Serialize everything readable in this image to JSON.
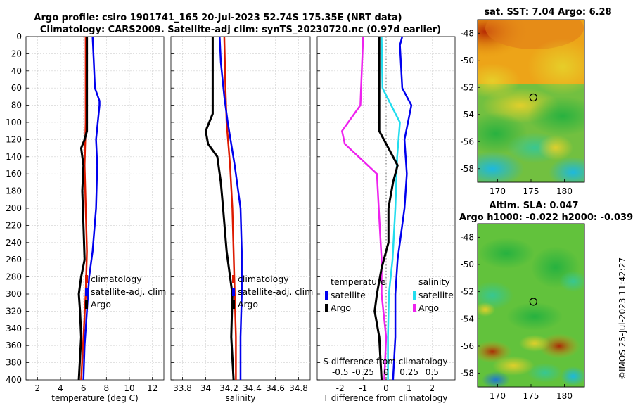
{
  "title_line1": "Argo profile: csiro 1901741_165 20-Jul-2023 52.74S 175.35E (NRT data)",
  "title_line2": "Climatology: CARS2009. Satellite-adj clim: synTS_20230720.nc (0.97d earlier)",
  "watermark": "©IMOS 25-Jul-2023 11:42:27",
  "colors": {
    "argo": "#000000",
    "climatology": "#dd1a00",
    "satellite_adj": "#0000ee",
    "sal_sat": "#22ddee",
    "sal_diff": "#ee22ee"
  },
  "chart_data": [
    {
      "id": "temperature",
      "type": "line",
      "xlabel": "temperature (deg C)",
      "xlim": [
        1,
        13
      ],
      "xticks": [
        2,
        4,
        6,
        8,
        10,
        12
      ],
      "ylim": [
        0,
        400
      ],
      "yticks": [
        0,
        20,
        40,
        60,
        80,
        100,
        120,
        140,
        160,
        180,
        200,
        220,
        240,
        260,
        280,
        300,
        320,
        340,
        360,
        380,
        400
      ],
      "legend": [
        "climatology",
        "satellite-adj. clim",
        "Argo"
      ],
      "series": [
        {
          "name": "climatology",
          "depth": [
            0,
            50,
            100,
            150,
            200,
            250,
            300,
            350,
            400
          ],
          "values": [
            6.2,
            6.2,
            6.2,
            6.1,
            6.2,
            6.3,
            6.2,
            6.0,
            5.8
          ]
        },
        {
          "name": "satellite-adj. clim",
          "depth": [
            0,
            30,
            60,
            75,
            80,
            120,
            150,
            200,
            250,
            280,
            320,
            360,
            400
          ],
          "values": [
            6.8,
            6.9,
            7.0,
            7.4,
            7.4,
            7.1,
            7.2,
            7.1,
            6.8,
            6.5,
            6.3,
            6.1,
            6.0
          ]
        },
        {
          "name": "Argo",
          "depth": [
            0,
            60,
            110,
            120,
            130,
            150,
            180,
            220,
            260,
            280,
            300,
            320,
            350,
            400
          ],
          "values": [
            6.3,
            6.3,
            6.3,
            6.1,
            5.8,
            6.0,
            5.9,
            6.0,
            6.1,
            5.8,
            5.6,
            5.7,
            5.8,
            5.6
          ]
        }
      ]
    },
    {
      "id": "salinity",
      "type": "line",
      "xlabel": "salinity",
      "xlim": [
        33.7,
        34.9
      ],
      "xticks": [
        33.8,
        34,
        34.2,
        34.4,
        34.6,
        34.8
      ],
      "ylim": [
        0,
        400
      ],
      "legend": [
        "climatology",
        "satellite-adj. clim",
        "Argo"
      ],
      "series": [
        {
          "name": "climatology",
          "depth": [
            0,
            60,
            100,
            150,
            200,
            250,
            300,
            350,
            400
          ],
          "values": [
            34.16,
            34.17,
            34.18,
            34.21,
            34.23,
            34.24,
            34.25,
            34.26,
            34.26
          ]
        },
        {
          "name": "satellite-adj. clim",
          "depth": [
            0,
            30,
            70,
            100,
            150,
            200,
            250,
            300,
            350,
            400
          ],
          "values": [
            34.12,
            34.13,
            34.16,
            34.19,
            34.25,
            34.3,
            34.31,
            34.31,
            34.3,
            34.3
          ]
        },
        {
          "name": "Argo",
          "depth": [
            0,
            90,
            110,
            125,
            140,
            170,
            200,
            250,
            300,
            350,
            400
          ],
          "values": [
            34.06,
            34.06,
            34.0,
            34.02,
            34.1,
            34.13,
            34.15,
            34.18,
            34.23,
            34.22,
            34.24
          ]
        }
      ]
    },
    {
      "id": "difference",
      "type": "line",
      "xlabel": "T difference from climatology",
      "xlabel_top": "S difference from climatology",
      "xlim": [
        -3,
        3
      ],
      "xticks": [
        -2,
        -1,
        0,
        1,
        2
      ],
      "xticks_top": [
        -0.5,
        -0.25,
        0,
        0.25,
        0.5
      ],
      "ylim": [
        0,
        400
      ],
      "legend_temperature": {
        "header": "temperature",
        "items": [
          "satellite",
          "Argo"
        ]
      },
      "legend_salinity": {
        "header": "salinity",
        "items": [
          "satellite",
          "Argo"
        ]
      },
      "series": [
        {
          "name": "temperature satellite",
          "depth": [
            0,
            10,
            60,
            80,
            120,
            160,
            200,
            260,
            300,
            350,
            400
          ],
          "values": [
            0.7,
            0.6,
            0.7,
            1.1,
            0.8,
            0.9,
            0.8,
            0.5,
            0.4,
            0.4,
            0.3
          ]
        },
        {
          "name": "temperature Argo",
          "depth": [
            0,
            70,
            110,
            130,
            150,
            170,
            200,
            240,
            270,
            300,
            320,
            350,
            400
          ],
          "values": [
            -0.3,
            -0.3,
            -0.3,
            0.1,
            0.5,
            0.3,
            0.1,
            0.1,
            -0.2,
            -0.4,
            -0.5,
            -0.3,
            -0.2
          ]
        },
        {
          "name": "salinity satellite",
          "depth": [
            0,
            60,
            100,
            140,
            200,
            260,
            300,
            350,
            400
          ],
          "values": [
            -0.05,
            -0.04,
            0.15,
            0.12,
            0.1,
            0.07,
            0.03,
            0.02,
            0.02
          ]
        },
        {
          "name": "salinity Argo",
          "depth": [
            0,
            80,
            110,
            125,
            160,
            200,
            260,
            300,
            350,
            400
          ],
          "values": [
            -0.25,
            -0.28,
            -0.48,
            -0.45,
            -0.1,
            -0.08,
            -0.05,
            -0.05,
            0.0,
            -0.02
          ]
        }
      ]
    },
    {
      "id": "sst_map",
      "type": "heatmap",
      "title": "sat. SST: 7.04 Argo: 6.28",
      "xticks": [
        170,
        175,
        180
      ],
      "yticks": [
        -48,
        -50,
        -52,
        -54,
        -56,
        -58
      ],
      "xlim": [
        167,
        183
      ],
      "ylim": [
        -59,
        -47
      ],
      "marker": {
        "lon": 175.35,
        "lat": -52.74
      }
    },
    {
      "id": "sla_map",
      "type": "heatmap",
      "title_line1": "Altim. SLA: 0.047",
      "title_line2": "Argo h1000: -0.022 h2000: -0.039",
      "xticks": [
        170,
        175,
        180
      ],
      "yticks": [
        -48,
        -50,
        -52,
        -54,
        -56,
        -58
      ],
      "xlim": [
        167,
        183
      ],
      "ylim": [
        -59,
        -47
      ],
      "marker": {
        "lon": 175.35,
        "lat": -52.74
      }
    }
  ]
}
